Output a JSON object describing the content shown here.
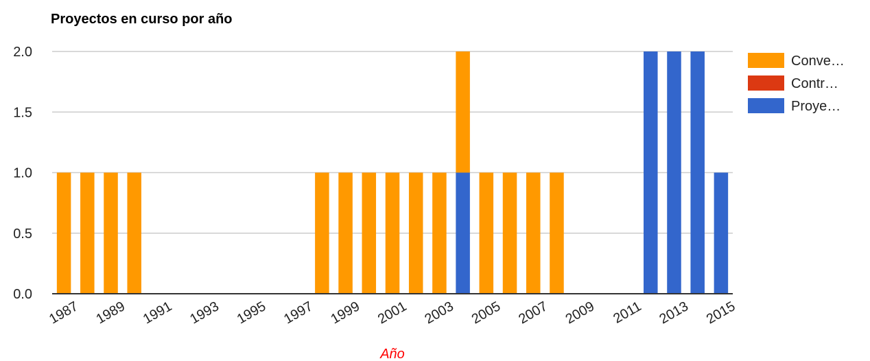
{
  "chart_data": {
    "type": "bar",
    "stacked": true,
    "title": "Proyectos en curso por año",
    "xlabel": "Año",
    "ylabel": "",
    "ylim": [
      0,
      2
    ],
    "y_ticks": [
      "0.0",
      "0.5",
      "1.0",
      "1.5",
      "2.0"
    ],
    "x_tick_labels": [
      "1987",
      "1989",
      "1991",
      "1993",
      "1995",
      "1997",
      "1999",
      "2001",
      "2003",
      "2005",
      "2007",
      "2009",
      "2011",
      "2013",
      "2015"
    ],
    "grid": true,
    "legend_position": "right",
    "categories": [
      "1987",
      "1988",
      "1989",
      "1990",
      "1991",
      "1992",
      "1993",
      "1994",
      "1995",
      "1996",
      "1997",
      "1998",
      "1999",
      "2000",
      "2001",
      "2002",
      "2003",
      "2004",
      "2005",
      "2006",
      "2007",
      "2008",
      "2009",
      "2010",
      "2011",
      "2012",
      "2013",
      "2014",
      "2015"
    ],
    "series": [
      {
        "name": "Proye…",
        "color": "#3366cc",
        "values": [
          0,
          0,
          0,
          0,
          0,
          0,
          0,
          0,
          0,
          0,
          0,
          0,
          0,
          0,
          0,
          0,
          0,
          1,
          0,
          0,
          0,
          0,
          0,
          0,
          0,
          2,
          2,
          2,
          1
        ]
      },
      {
        "name": "Contr…",
        "color": "#dc3912",
        "values": [
          0,
          0,
          0,
          0,
          0,
          0,
          0,
          0,
          0,
          0,
          0,
          0,
          0,
          0,
          0,
          0,
          0,
          0,
          0,
          0,
          0,
          0,
          0,
          0,
          0,
          0,
          0,
          0,
          0
        ]
      },
      {
        "name": "Conve…",
        "color": "#ff9900",
        "values": [
          1,
          1,
          1,
          1,
          0,
          0,
          0,
          0,
          0,
          0,
          0,
          1,
          1,
          1,
          1,
          1,
          1,
          1,
          1,
          1,
          1,
          1,
          0,
          0,
          0,
          0,
          0,
          0,
          0
        ]
      }
    ],
    "legend_order": [
      "Conve…",
      "Contr…",
      "Proye…"
    ]
  },
  "colors": {
    "xlabel": "#ff0000",
    "grid": "#cccccc",
    "axis": "#333333",
    "text": "#222222"
  }
}
